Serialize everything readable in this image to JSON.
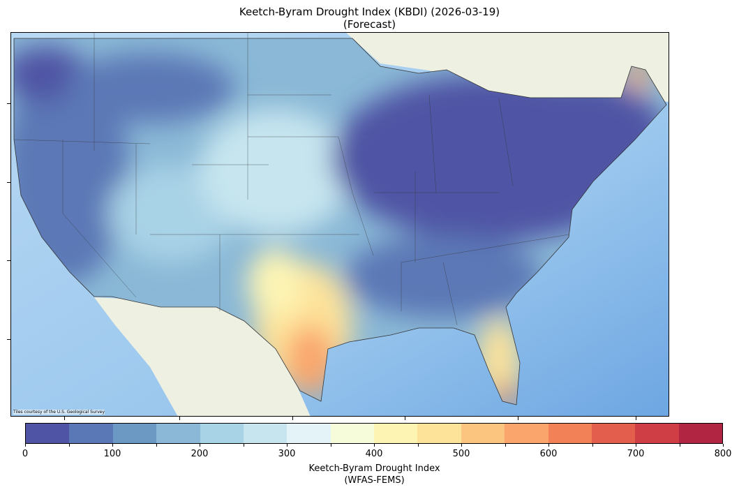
{
  "title": {
    "line1": "Keetch-Byram Drought Index (KBDI) (2026-03-19)",
    "line2": "(Forecast)"
  },
  "map": {
    "attribution": "Tiles courtesy of the U.S. Geological Survey",
    "colors": {
      "ocean": "#a9cfef",
      "ocean_deep": "#7fb2e6",
      "land_background": "#eef0e2",
      "states": "#333333"
    }
  },
  "colorbar": {
    "label_line1": "Keetch-Byram Drought Index",
    "label_line2": "(WFAS-FEMS)",
    "min": 0,
    "max": 800,
    "step": 50,
    "ticks": [
      "0",
      "100",
      "200",
      "300",
      "400",
      "500",
      "600",
      "700",
      "800"
    ],
    "colors": [
      "#5054a4",
      "#5b78b6",
      "#6c98c4",
      "#8ab8d6",
      "#a8d2e6",
      "#c6e5ef",
      "#e4f3f7",
      "#f6fbd9",
      "#fdf4b4",
      "#fde29a",
      "#fcc57f",
      "#f9a56c",
      "#f28158",
      "#e35e4d",
      "#cf3e44",
      "#b12542"
    ]
  }
}
